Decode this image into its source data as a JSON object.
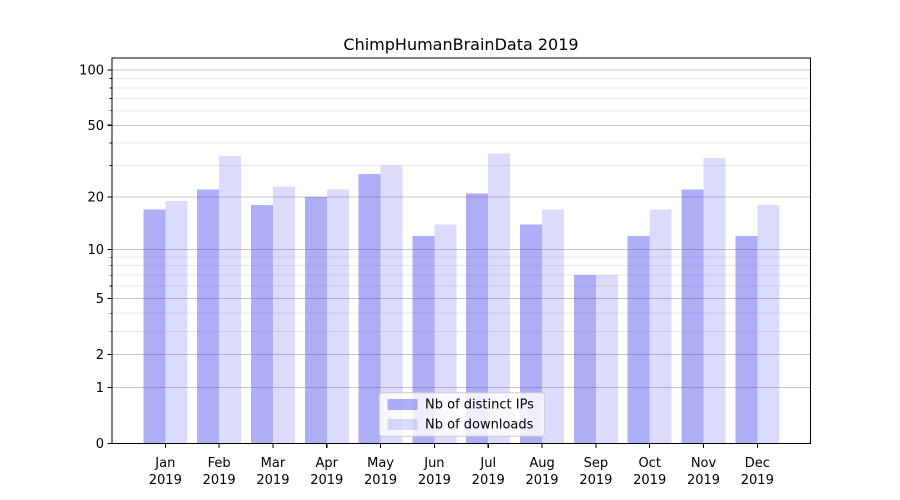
{
  "chart_data": {
    "type": "bar",
    "title": "ChimpHumanBrainData 2019",
    "categories": [
      "Jan 2019",
      "Feb 2019",
      "Mar 2019",
      "Apr 2019",
      "May 2019",
      "Jun 2019",
      "Jul 2019",
      "Aug 2019",
      "Sep 2019",
      "Oct 2019",
      "Nov 2019",
      "Dec 2019"
    ],
    "series": [
      {
        "name": "Nb of distinct IPs",
        "color": "#5555ee",
        "fill_opacity": 0.48,
        "rendered_color": "#a9a9f5",
        "values": [
          17,
          22,
          18,
          20,
          27,
          12,
          21,
          14,
          7,
          12,
          22,
          12
        ]
      },
      {
        "name": "Nb of downloads",
        "color": "#5555ee",
        "fill_opacity": 0.21,
        "rendered_color": "#dadaf9",
        "values": [
          19,
          34,
          23,
          22,
          30,
          14,
          35,
          17,
          7,
          17,
          33,
          18
        ]
      }
    ],
    "yscale": "log1p",
    "y_ticks": [
      0,
      1,
      2,
      5,
      10,
      20,
      50,
      100
    ],
    "y_minor_ticks": [
      3,
      4,
      6,
      7,
      8,
      9,
      30,
      40,
      60,
      70,
      80,
      90
    ],
    "ylim": [
      0,
      116
    ],
    "grid": true,
    "legend_position": "lower center"
  },
  "colors": {
    "grid_major": "#c4c4c4",
    "grid_minor": "#eaeaea",
    "axis": "#000000",
    "legend_border": "#cccccc",
    "legend_bg": "#ffffff",
    "background": "#ffffff"
  }
}
